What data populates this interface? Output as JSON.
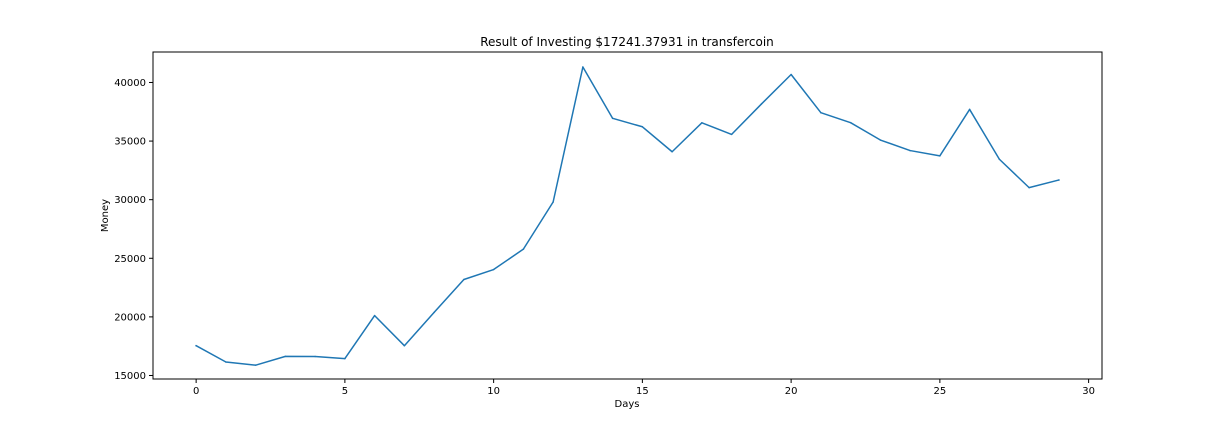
{
  "chart_data": {
    "type": "line",
    "title": "Result of Investing $17241.37931 in transfercoin",
    "xlabel": "Days",
    "ylabel": "Money",
    "xlim": [
      -1.45,
      30.45
    ],
    "ylim": [
      14700,
      42600
    ],
    "xticks": [
      0,
      5,
      10,
      15,
      20,
      25,
      30
    ],
    "yticks": [
      15000,
      20000,
      25000,
      30000,
      35000,
      40000
    ],
    "grid": false,
    "legend": "none",
    "series": [
      {
        "color": "#1f77b4",
        "x": [
          0,
          1,
          2,
          3,
          4,
          5,
          6,
          7,
          8,
          9,
          10,
          11,
          12,
          13,
          14,
          15,
          16,
          17,
          18,
          19,
          20,
          21,
          22,
          23,
          24,
          25,
          26,
          27,
          28,
          29
        ],
        "values": [
          17540,
          16150,
          15880,
          16630,
          16620,
          16440,
          20110,
          17540,
          20380,
          23190,
          24040,
          25780,
          29800,
          41320,
          36940,
          36220,
          34090,
          36560,
          35570,
          38160,
          40680,
          37420,
          36570,
          35090,
          34190,
          33740,
          37700,
          33450,
          31030,
          31680
        ]
      }
    ]
  }
}
